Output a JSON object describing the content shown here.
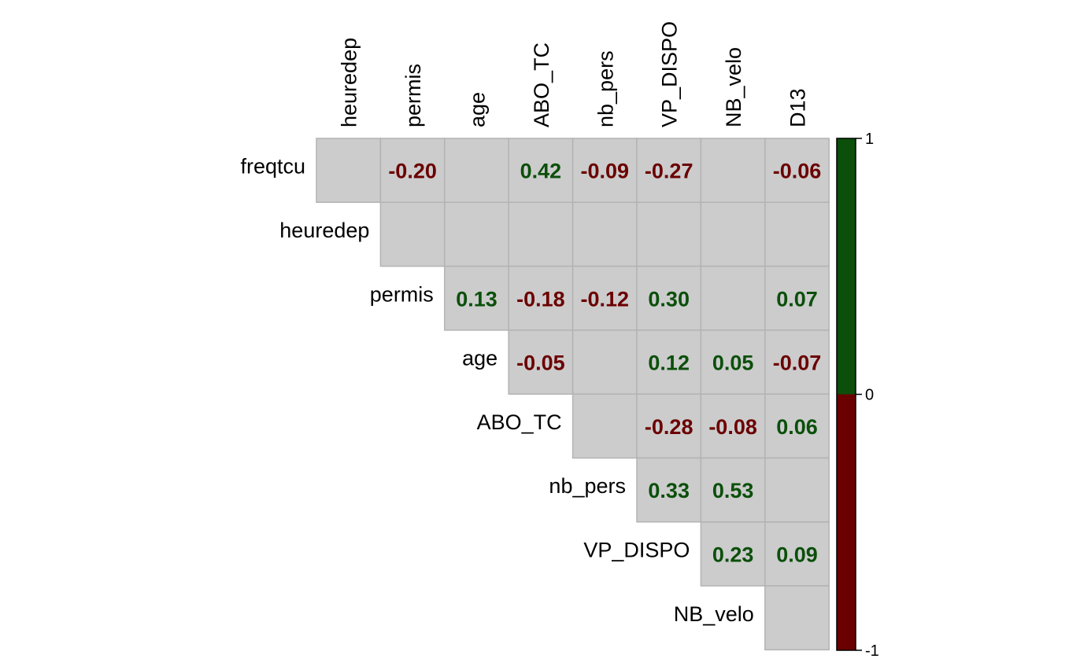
{
  "chart_data": {
    "type": "heatmap",
    "layout": "upper-triangle correlation matrix",
    "row_labels": [
      "freqtcu",
      "heuredep",
      "permis",
      "age",
      "ABO_TC",
      "nb_pers",
      "VP_DISPO",
      "NB_velo"
    ],
    "col_labels": [
      "heuredep",
      "permis",
      "age",
      "ABO_TC",
      "nb_pers",
      "VP_DISPO",
      "NB_velo",
      "D13"
    ],
    "matrix": [
      [
        null,
        "-0.20",
        null,
        "0.42",
        "-0.09",
        "-0.27",
        null,
        "-0.06"
      ],
      [
        null,
        null,
        null,
        null,
        null,
        null,
        null,
        null
      ],
      [
        null,
        null,
        "0.13",
        "-0.18",
        "-0.12",
        "0.30",
        null,
        "0.07"
      ],
      [
        null,
        null,
        null,
        "-0.05",
        null,
        "0.12",
        "0.05",
        "-0.07"
      ],
      [
        null,
        null,
        null,
        null,
        null,
        "-0.28",
        "-0.08",
        "0.06"
      ],
      [
        null,
        null,
        null,
        null,
        null,
        "0.33",
        "0.53",
        null
      ],
      [
        null,
        null,
        null,
        null,
        null,
        null,
        "0.23",
        "0.09"
      ],
      [
        null,
        null,
        null,
        null,
        null,
        null,
        null,
        null
      ]
    ],
    "colorbar": {
      "ticks": [
        "1",
        "0",
        "-1"
      ],
      "positive_color": "#0b4f0b",
      "negative_color": "#6b0000"
    },
    "colors": {
      "cell_fill": "#cccccc",
      "cell_border": "#b3b3b3",
      "positive_text": "#0b4f0b",
      "negative_text": "#6b0000"
    }
  }
}
